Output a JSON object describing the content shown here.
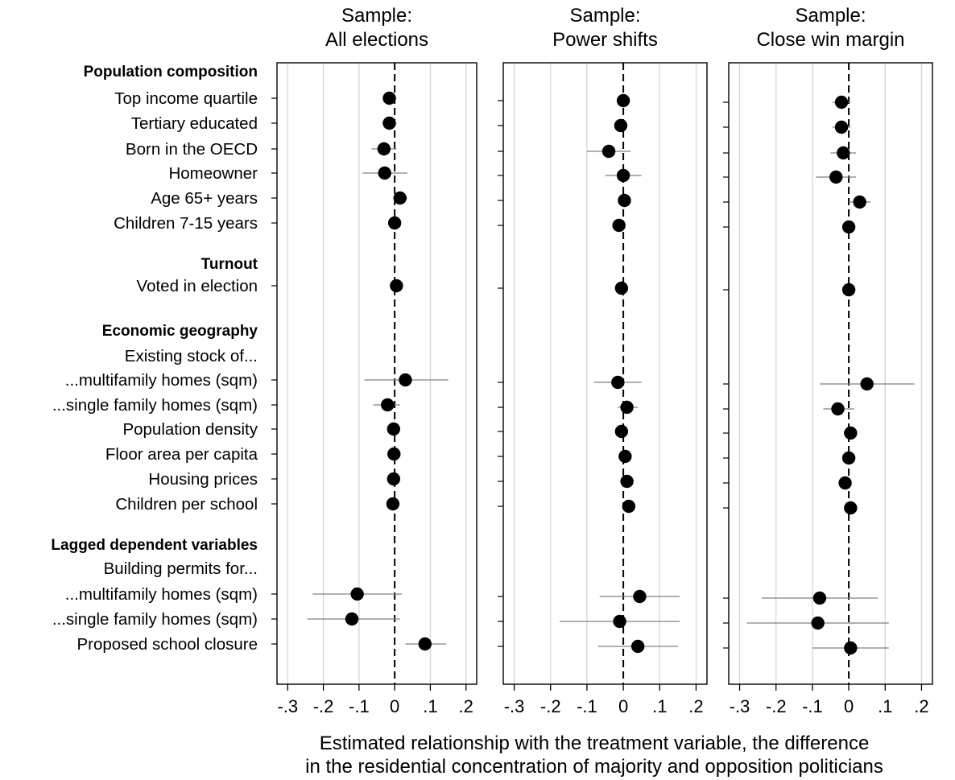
{
  "chart_data": {
    "type": "scatter",
    "plot_style": "coefficient plot with confidence intervals, three panels sharing row labels",
    "xlabel_lines": [
      "Estimated relationship with the treatment variable, the difference",
      "in the residential concentration of majority and opposition politicians"
    ],
    "xlim": [
      -0.33,
      0.23
    ],
    "x_ticks": [
      -0.3,
      -0.2,
      -0.1,
      0,
      0.1,
      0.2
    ],
    "x_tick_labels": [
      "-.3",
      "-.2",
      "-.1",
      "0",
      ".1",
      ".2"
    ],
    "grid": "vertical",
    "reference_line": 0,
    "rows": [
      {
        "label": "Population composition",
        "kind": "group"
      },
      {
        "label": "Top income quartile",
        "kind": "var"
      },
      {
        "label": "Tertiary educated",
        "kind": "var"
      },
      {
        "label": "Born in the OECD",
        "kind": "var"
      },
      {
        "label": "Homeowner",
        "kind": "var"
      },
      {
        "label": "Age 65+ years",
        "kind": "var"
      },
      {
        "label": "Children 7-15 years",
        "kind": "var"
      },
      {
        "label": "Turnout",
        "kind": "group"
      },
      {
        "label": "Voted in election",
        "kind": "var"
      },
      {
        "label": "Economic geography",
        "kind": "group"
      },
      {
        "label": "Existing stock of...",
        "kind": "sub"
      },
      {
        "label": "...multifamily homes (sqm)",
        "kind": "var"
      },
      {
        "label": "...single family homes (sqm)",
        "kind": "var"
      },
      {
        "label": "Population density",
        "kind": "var"
      },
      {
        "label": "Floor area per capita",
        "kind": "var"
      },
      {
        "label": "Housing prices",
        "kind": "var"
      },
      {
        "label": "Children per school",
        "kind": "var"
      },
      {
        "label": "Lagged dependent variables",
        "kind": "group"
      },
      {
        "label": "Building permits for...",
        "kind": "sub"
      },
      {
        "label": "...multifamily homes (sqm)",
        "kind": "var"
      },
      {
        "label": "...single family homes (sqm)",
        "kind": "var"
      },
      {
        "label": "Proposed school closure",
        "kind": "var"
      }
    ],
    "panels": [
      {
        "title_lines": [
          "Sample:",
          "All elections"
        ],
        "estimates": [
          -0.015,
          -0.015,
          -0.03,
          -0.028,
          0.015,
          0.0,
          0.005,
          0.03,
          -0.02,
          -0.003,
          -0.002,
          -0.003,
          -0.005,
          -0.105,
          -0.12,
          0.085
        ],
        "ci_low": [
          -0.03,
          -0.035,
          -0.065,
          -0.09,
          -0.005,
          -0.008,
          -0.002,
          -0.085,
          -0.06,
          -0.008,
          -0.008,
          -0.008,
          -0.01,
          -0.23,
          -0.245,
          0.03
        ],
        "ci_high": [
          0.005,
          0.005,
          0.005,
          0.035,
          0.035,
          0.008,
          0.012,
          0.15,
          0.015,
          0.004,
          0.004,
          0.004,
          0.002,
          0.02,
          0.015,
          0.145
        ]
      },
      {
        "title_lines": [
          "Sample:",
          "Power shifts"
        ],
        "estimates": [
          0.0,
          -0.007,
          -0.04,
          0.0,
          0.003,
          -0.012,
          -0.005,
          -0.015,
          0.01,
          -0.005,
          0.005,
          0.01,
          0.015,
          0.045,
          -0.01,
          0.04
        ],
        "ci_low": [
          -0.008,
          -0.018,
          -0.1,
          -0.05,
          -0.005,
          -0.02,
          -0.012,
          -0.08,
          -0.015,
          -0.013,
          -0.003,
          0.002,
          0.005,
          -0.065,
          -0.175,
          -0.07
        ],
        "ci_high": [
          0.008,
          0.004,
          0.02,
          0.05,
          0.011,
          -0.004,
          0.002,
          0.05,
          0.04,
          0.003,
          0.013,
          0.018,
          0.025,
          0.155,
          0.155,
          0.15
        ]
      },
      {
        "title_lines": [
          "Sample:",
          "Close win margin"
        ],
        "estimates": [
          -0.02,
          -0.02,
          -0.015,
          -0.035,
          0.03,
          0.0,
          0.0,
          0.05,
          -0.03,
          0.005,
          0.0,
          -0.01,
          0.005,
          -0.08,
          -0.085,
          0.005
        ],
        "ci_low": [
          -0.045,
          -0.045,
          -0.05,
          -0.09,
          0.0,
          -0.008,
          -0.006,
          -0.08,
          -0.07,
          -0.005,
          -0.008,
          -0.025,
          -0.01,
          -0.24,
          -0.28,
          -0.1
        ],
        "ci_high": [
          0.005,
          0.005,
          0.02,
          0.02,
          0.06,
          0.008,
          0.006,
          0.18,
          0.015,
          0.015,
          0.008,
          0.005,
          0.02,
          0.08,
          0.11,
          0.11
        ]
      }
    ],
    "colors": {
      "marker": "#000000",
      "ci": "#808080",
      "grid": "#d6d6d6",
      "reference": "#000000"
    }
  }
}
